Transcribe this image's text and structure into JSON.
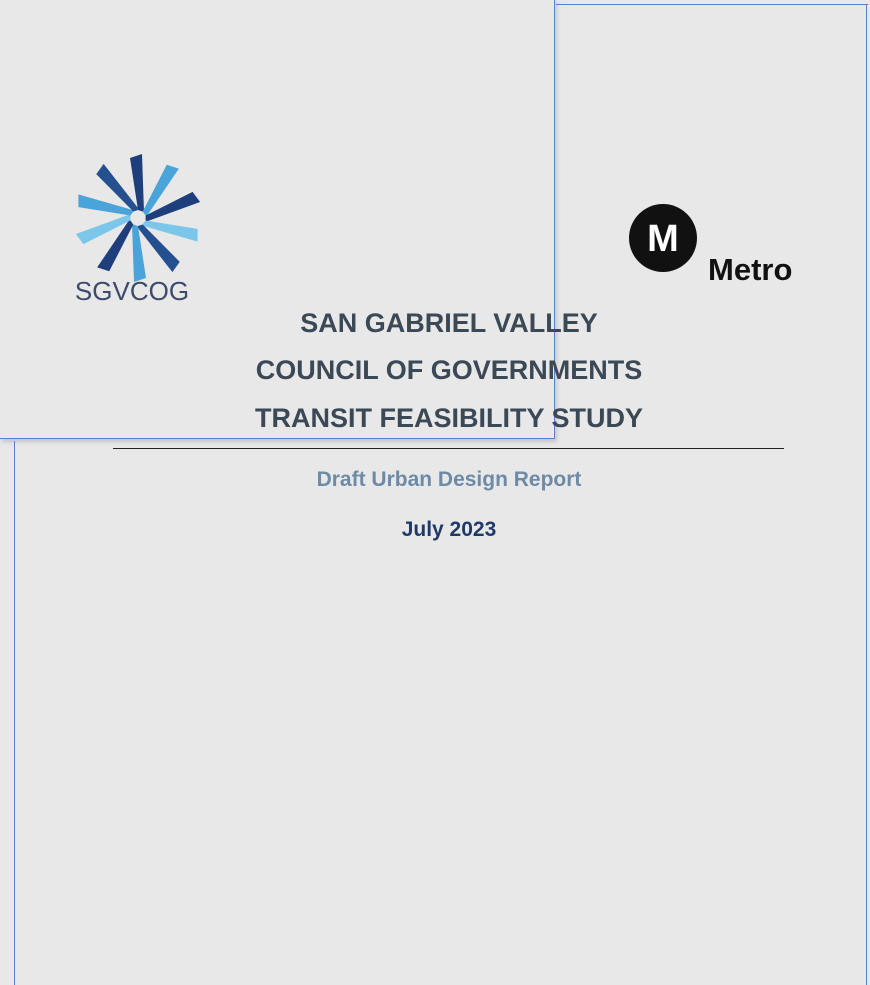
{
  "logos": {
    "left": "SGVCOG",
    "right_mark": "M",
    "right": "Metro"
  },
  "title": [
    "SAN GABRIEL VALLEY",
    "COUNCIL OF GOVERNMENTS",
    "TRANSIT FEASIBILITY STUDY"
  ],
  "subtitle": "Draft Urban Design Report",
  "date": "July 2023"
}
